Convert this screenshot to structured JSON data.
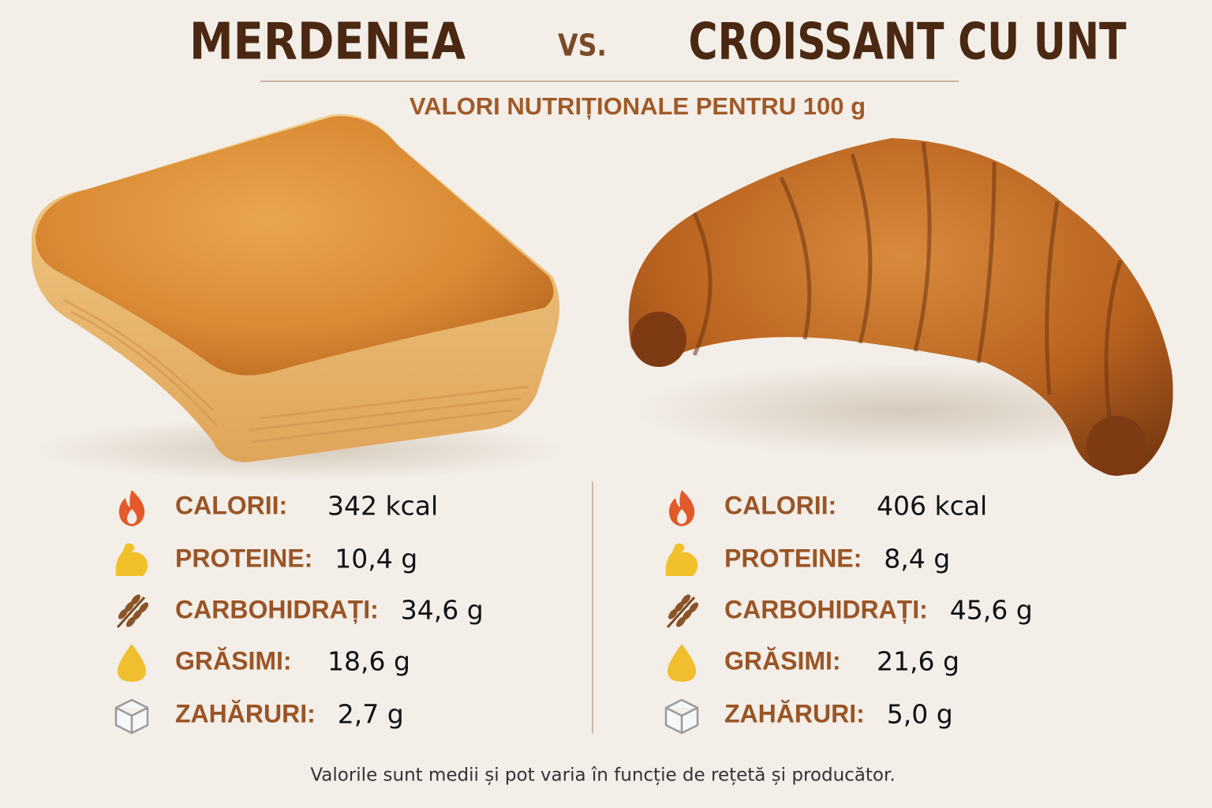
{
  "header": {
    "title_left": "MERDENEA",
    "vs": "VS.",
    "title_right": "CROISSANT CU UNT",
    "subtitle": "VALORI NUTRIȚIONALE PENTRU 100 g"
  },
  "left": {
    "rows": [
      {
        "label": "CALORII:",
        "value": "342 kcal"
      },
      {
        "label": "PROTEINE:",
        "value": "10,4 g"
      },
      {
        "label": "CARBOHIDRAȚI:",
        "value": "34,6 g"
      },
      {
        "label": "GRĂSIMI:",
        "value": "18,6 g"
      },
      {
        "label": "ZAHĂRURI:",
        "value": "2,7 g"
      }
    ]
  },
  "right": {
    "rows": [
      {
        "label": "CALORII:",
        "value": "406 kcal"
      },
      {
        "label": "PROTEINE:",
        "value": "8,4 g"
      },
      {
        "label": "CARBOHIDRAȚI:",
        "value": "45,6 g"
      },
      {
        "label": "GRĂSIMI:",
        "value": "21,6 g"
      },
      {
        "label": "ZAHĂRURI:",
        "value": "5,0 g"
      }
    ]
  },
  "footnote": "Valorile sunt medii și pot varia în funcție de rețetă și producător."
}
